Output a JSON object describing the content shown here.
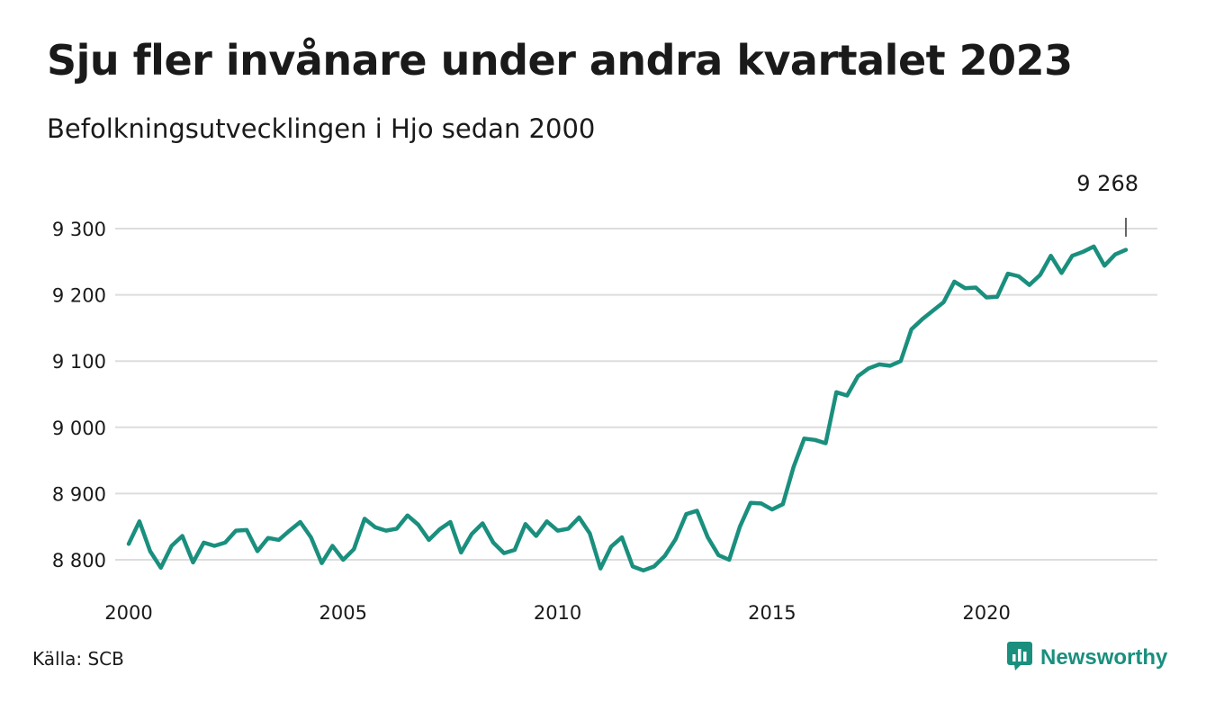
{
  "header": {
    "title": "Sju fler invånare under andra kvartalet 2023",
    "subtitle": "Befolkningsutvecklingen i Hjo sedan 2000"
  },
  "footer": {
    "source": "Källa: SCB",
    "brand": "Newsworthy",
    "brand_icon": "bar-chart-speech-icon"
  },
  "colors": {
    "line": "#1a8f7e",
    "grid": "#dddddd",
    "text": "#1a1a1a"
  },
  "chart_data": {
    "type": "line",
    "title": "Sju fler invånare under andra kvartalet 2023",
    "subtitle": "Befolkningsutvecklingen i Hjo sedan 2000",
    "xlabel": "",
    "ylabel": "",
    "x_ticks": [
      "2000",
      "2005",
      "2010",
      "2015",
      "2020"
    ],
    "x_tick_values": [
      2000,
      2005,
      2010,
      2015,
      2020
    ],
    "y_ticks": [
      "8 800",
      "8 900",
      "9 000",
      "9 100",
      "9 200",
      "9 300"
    ],
    "y_tick_values": [
      8800,
      8900,
      9000,
      9100,
      9200,
      9300
    ],
    "xlim": [
      2000,
      2023.25
    ],
    "ylim": [
      8760,
      9320
    ],
    "grid": true,
    "annotation": {
      "label": "9 268",
      "x": 2023.25,
      "y": 9268
    },
    "series": [
      {
        "x": [
          2000,
          2000.25,
          2000.5,
          2000.75,
          2001,
          2001.25,
          2001.5,
          2001.75,
          2002,
          2002.25,
          2002.5,
          2002.75,
          2003,
          2003.25,
          2003.5,
          2003.75,
          2004,
          2004.25,
          2004.5,
          2004.75,
          2005,
          2005.25,
          2005.5,
          2005.75,
          2006,
          2006.25,
          2006.5,
          2006.75,
          2007,
          2007.25,
          2007.5,
          2007.75,
          2008,
          2008.25,
          2008.5,
          2008.75,
          2009,
          2009.25,
          2009.5,
          2009.75,
          2010,
          2010.25,
          2010.5,
          2010.75,
          2011,
          2011.25,
          2011.5,
          2011.75,
          2012,
          2012.25,
          2012.5,
          2012.75,
          2013,
          2013.25,
          2013.5,
          2013.75,
          2014,
          2014.25,
          2014.5,
          2014.75,
          2015,
          2015.25,
          2015.5,
          2015.75,
          2016,
          2016.25,
          2016.5,
          2016.75,
          2017,
          2017.25,
          2017.5,
          2017.75,
          2018,
          2018.25,
          2018.5,
          2018.75,
          2019,
          2019.25,
          2019.5,
          2019.75,
          2020,
          2020.25,
          2020.5,
          2020.75,
          2021,
          2021.25,
          2021.5,
          2021.75,
          2022,
          2022.25,
          2022.5,
          2022.75,
          2023,
          2023.25
        ],
        "values": [
          8824,
          8858,
          8813,
          8788,
          8821,
          8836,
          8796,
          8826,
          8821,
          8826,
          8844,
          8845,
          8813,
          8833,
          8830,
          8844,
          8857,
          8834,
          8795,
          8821,
          8800,
          8816,
          8862,
          8849,
          8844,
          8847,
          8867,
          8853,
          8830,
          8846,
          8857,
          8811,
          8839,
          8855,
          8826,
          8810,
          8815,
          8854,
          8836,
          8858,
          8844,
          8847,
          8864,
          8840,
          8787,
          8820,
          8834,
          8790,
          8784,
          8790,
          8806,
          8831,
          8869,
          8874,
          8834,
          8807,
          8800,
          8850,
          8886,
          8885,
          8876,
          8884,
          8940,
          8983,
          8981,
          8976,
          9053,
          9048,
          9077,
          9089,
          9095,
          9093,
          9100,
          9148,
          9163,
          9176,
          9189,
          9220,
          9210,
          9211,
          9196,
          9197,
          9232,
          9228,
          9215,
          9230,
          9259,
          9233,
          9259,
          9265,
          9273,
          9244,
          9261,
          9268
        ]
      }
    ]
  }
}
